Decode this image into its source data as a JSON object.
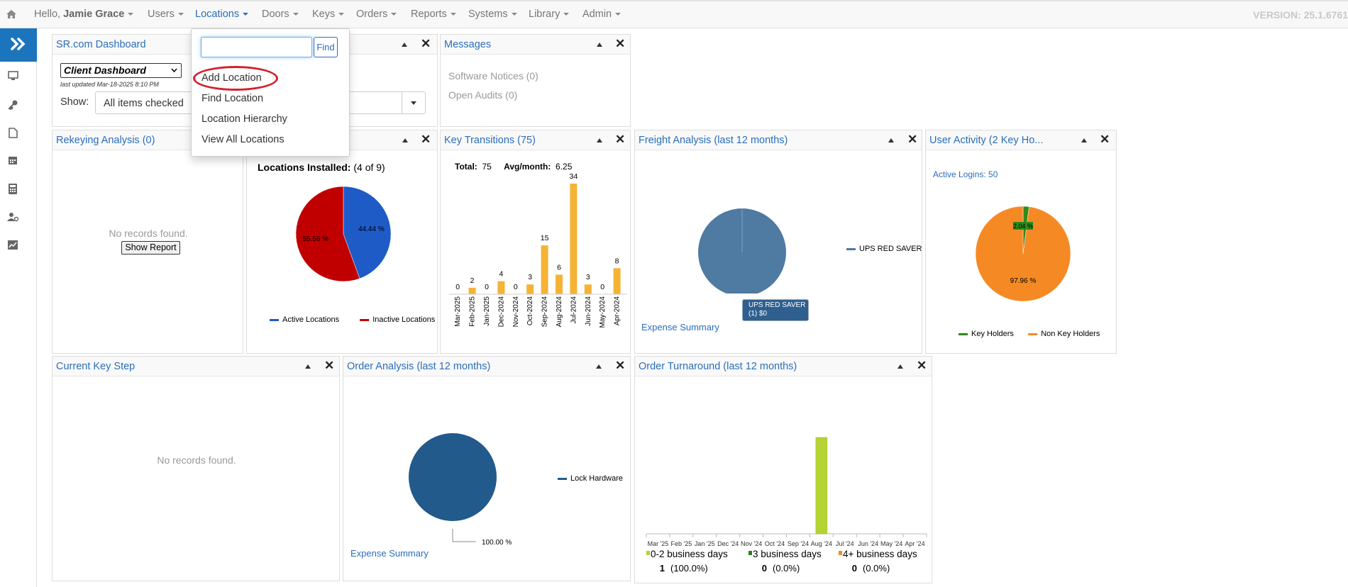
{
  "topnav": {
    "hello_prefix": "Hello,",
    "user_name": "Jamie Grace",
    "items": [
      "Users",
      "Locations",
      "Doors",
      "Keys",
      "Orders",
      "Reports",
      "Systems",
      "Library",
      "Admin"
    ],
    "version": "VERSION: 25.1.6761"
  },
  "locations_menu": {
    "search_value": "",
    "find_label": "Find",
    "items": [
      "Add Location",
      "Find Location",
      "Location Hierarchy",
      "View All Locations"
    ]
  },
  "panels": {
    "dashboard": {
      "title": "SR.com Dashboard",
      "select_value": "Client Dashboard",
      "last_updated": "last updated Mar-18-2025 8:10 PM",
      "show_label": "Show:",
      "show_value": "All items checked"
    },
    "messages": {
      "title": "Messages",
      "items": [
        "Software Notices (0)",
        "Open Audits (0)"
      ]
    },
    "rekeying": {
      "title": "Rekeying Analysis (0)",
      "empty": "No records found.",
      "button": "Show Report"
    },
    "locations_installed": {
      "heading": "Locations Installed:",
      "count": "(4 of 9)"
    },
    "key_transitions": {
      "title": "Key Transitions (75)",
      "total_label": "Total:",
      "total_value": "75",
      "avg_label": "Avg/month:",
      "avg_value": "6.25"
    },
    "freight": {
      "title": "Freight Analysis (last 12 months)",
      "link": "Expense Summary",
      "tooltip_line1": "UPS RED SAVER",
      "tooltip_line2": "(1) $0"
    },
    "user_activity": {
      "title": "User Activity (2 Key Ho...",
      "active_logins": "Active Logins: 50"
    },
    "current_key_step": {
      "title": "Current Key Step",
      "empty": "No records found."
    },
    "order_analysis": {
      "title": "Order Analysis (last 12 months)",
      "link": "Expense Summary"
    },
    "order_turnaround": {
      "title": "Order Turnaround (last 12 months)"
    }
  },
  "chart_data": [
    {
      "type": "pie",
      "labels": [
        "Active Locations",
        "Inactive Locations"
      ],
      "values": [
        44.44,
        55.56
      ],
      "slice_labels": [
        "44.44 %",
        "55.56 %"
      ],
      "colors": [
        "#1f5bc6",
        "#c00000"
      ]
    },
    {
      "type": "bar",
      "categories": [
        "Mar-2025",
        "Feb-2025",
        "Jan-2025",
        "Dec-2024",
        "Nov-2024",
        "Oct-2024",
        "Sep-2024",
        "Aug-2024",
        "Jul-2024",
        "Jun-2024",
        "May-2024",
        "Apr-2024"
      ],
      "values": [
        0,
        2,
        0,
        4,
        0,
        3,
        15,
        6,
        34,
        3,
        0,
        8
      ],
      "ylim": [
        0,
        34
      ],
      "color": "#f5b335"
    },
    {
      "type": "pie",
      "labels": [
        "UPS RED SAVER"
      ],
      "values": [
        100
      ],
      "colors": [
        "#4f7aa2"
      ]
    },
    {
      "type": "pie",
      "labels": [
        "Key Holders",
        "Non Key Holders"
      ],
      "values": [
        2.04,
        97.96
      ],
      "slice_labels": [
        "2.04 %",
        "97.96 %"
      ],
      "colors": [
        "#2e8a1c",
        "#f58a25"
      ]
    },
    {
      "type": "pie",
      "labels": [
        "Lock Hardware"
      ],
      "values": [
        100
      ],
      "slice_labels": [
        "100.00 %"
      ],
      "colors": [
        "#235a8c"
      ]
    },
    {
      "type": "bar",
      "categories": [
        "Mar '25",
        "Feb '25",
        "Jan '25",
        "Dec '24",
        "Nov '24",
        "Oct '24",
        "Sep '24",
        "Aug '24",
        "Jul '24",
        "Jun '24",
        "May '24",
        "Apr '24"
      ],
      "values": [
        0,
        0,
        0,
        0,
        0,
        0,
        0,
        1,
        0,
        0,
        0,
        0
      ],
      "ylim": [
        0,
        1
      ],
      "color": "#b5d334",
      "legend": [
        {
          "name": "0-2 business days",
          "color": "#b5d334",
          "count": "1",
          "pct": "100.0%"
        },
        {
          "name": "3 business days",
          "color": "#2e7d1e",
          "count": "0",
          "pct": "0.0%"
        },
        {
          "name": "4+ business days",
          "color": "#f58a25",
          "count": "0",
          "pct": "0.0%"
        }
      ]
    }
  ]
}
